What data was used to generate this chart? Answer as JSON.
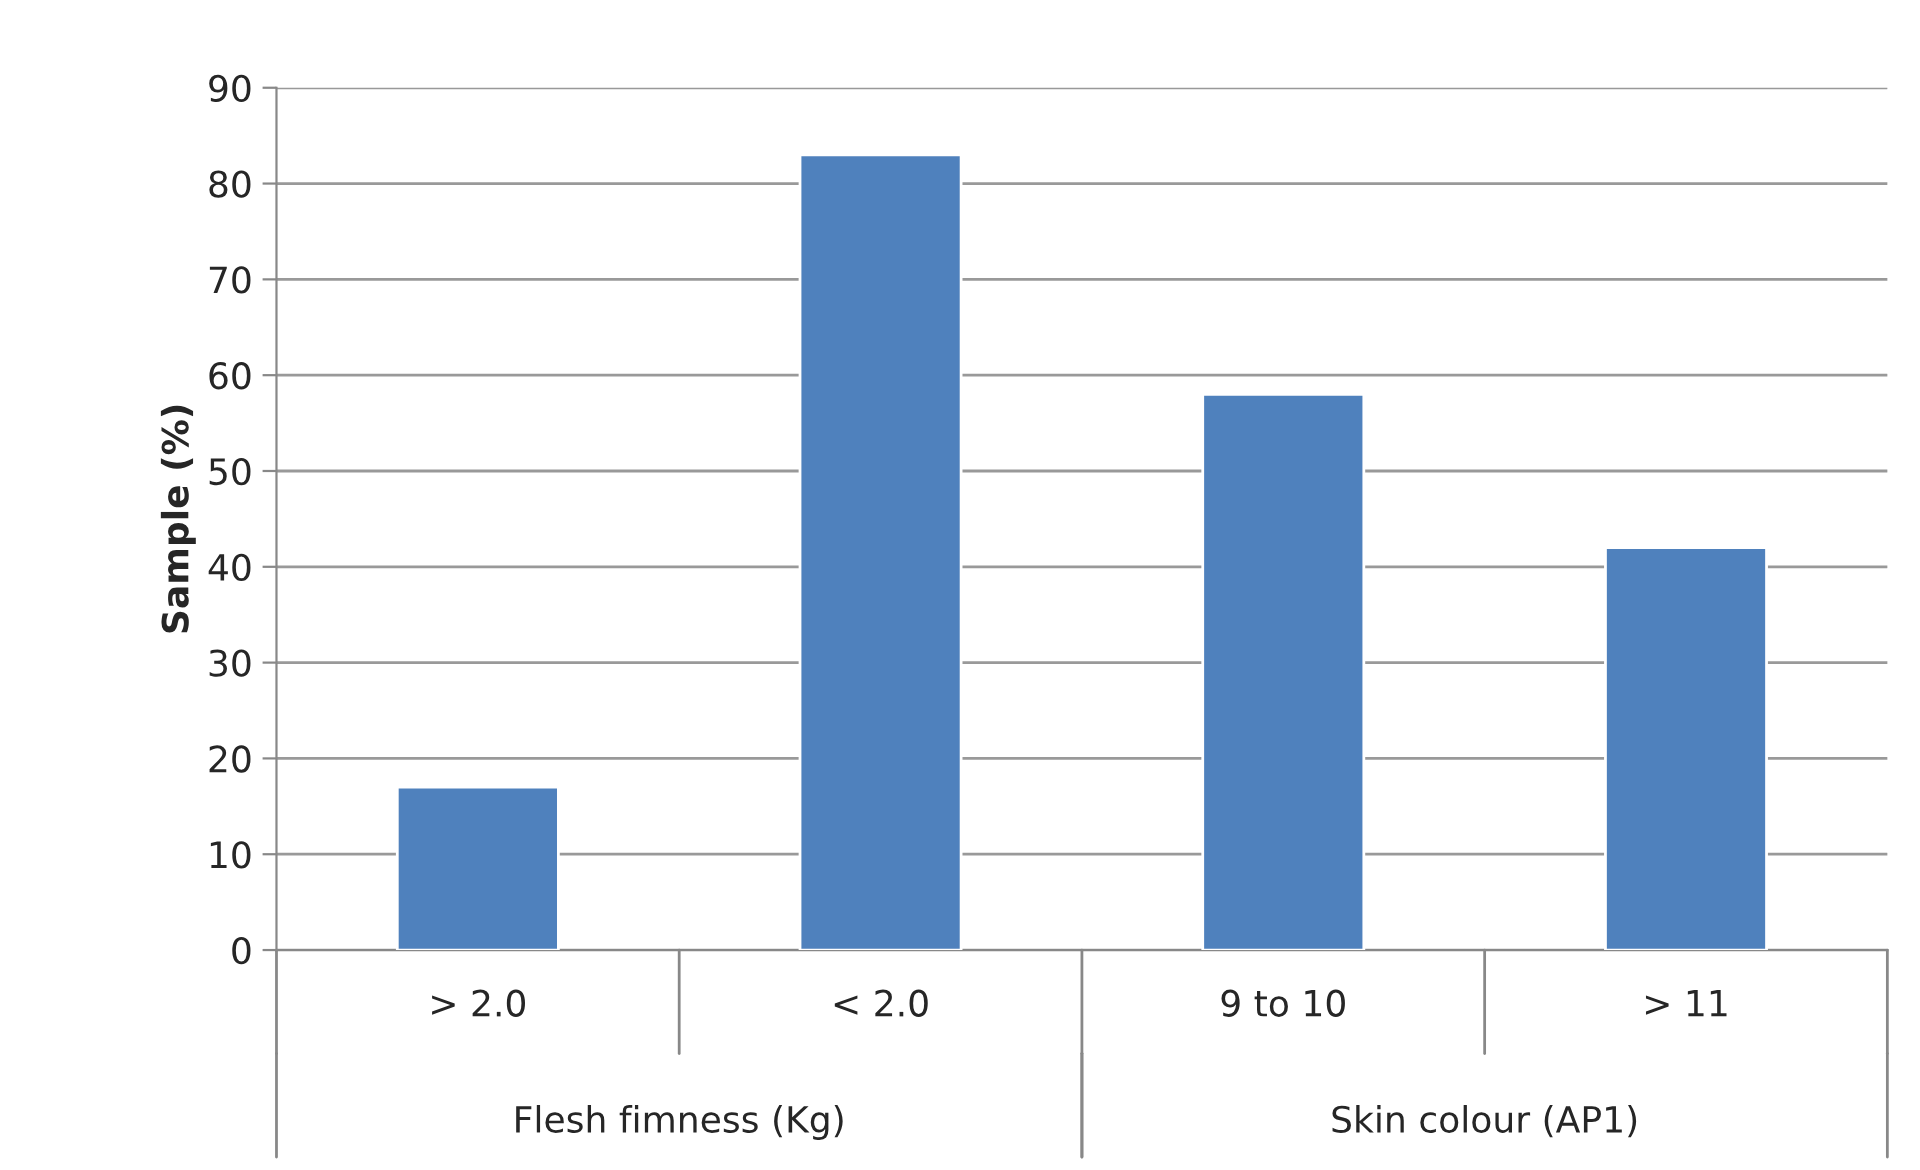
{
  "chart_data": {
    "type": "bar",
    "ylabel": "Sample (%)",
    "categories": [
      "> 2.0",
      "< 2.0",
      "9 to 10",
      "> 11"
    ],
    "values": [
      17,
      83,
      58,
      42
    ],
    "color": "#4f81bd",
    "ylim": [
      0,
      90
    ],
    "yticks": [
      0,
      10,
      20,
      30,
      40,
      50,
      60,
      70,
      80,
      90
    ],
    "grid": "y",
    "legend": false,
    "annotations": [
      "Flesh fimness (Kg)",
      "Skin colour (AP1)"
    ]
  }
}
